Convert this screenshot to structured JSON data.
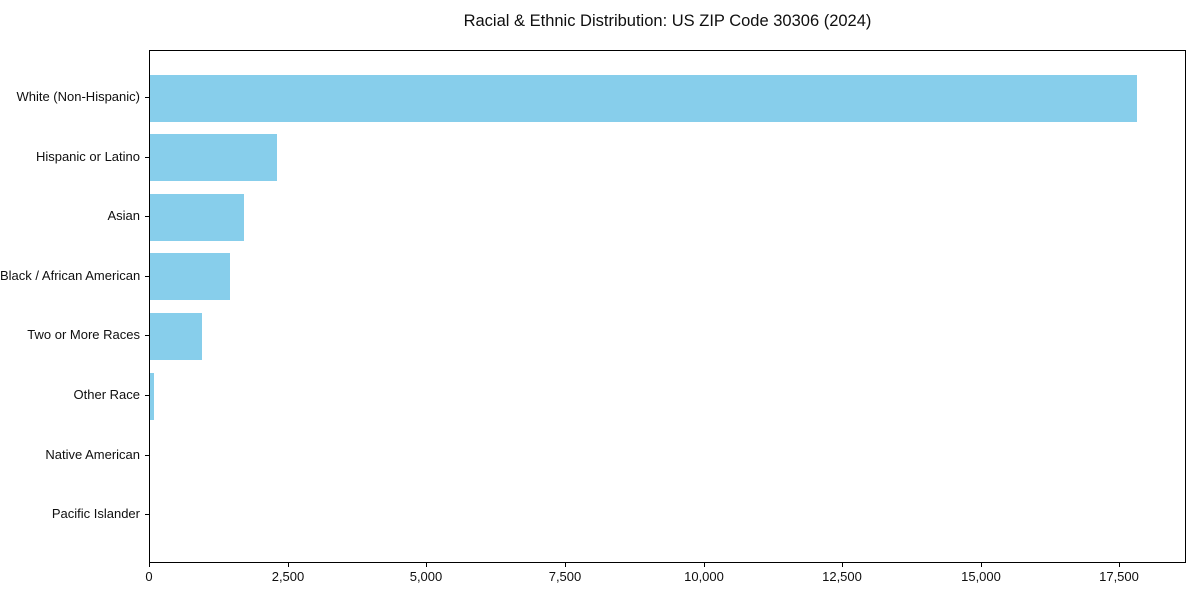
{
  "title": "Racial & Ethnic Distribution: US ZIP Code 30306 (2024)",
  "colors": {
    "bar": "#87CEEB",
    "spine": "#000000",
    "text": "#0f0f0f",
    "background": "#ffffff"
  },
  "chart_data": {
    "type": "bar",
    "orientation": "horizontal",
    "title": "Racial & Ethnic Distribution: US ZIP Code 30306 (2024)",
    "categories": [
      "White (Non-Hispanic)",
      "Hispanic or Latino",
      "Asian",
      "Black / African American",
      "Two or More Races",
      "Other Race",
      "Native American",
      "Pacific Islander"
    ],
    "values": [
      17800,
      2290,
      1700,
      1440,
      940,
      70,
      0,
      0
    ],
    "xlabel": "",
    "ylabel": "",
    "xlim": [
      0,
      18700
    ],
    "x_ticks": [
      0,
      2500,
      5000,
      7500,
      10000,
      12500,
      15000,
      17500
    ],
    "x_tick_labels": [
      "0",
      "2,500",
      "5,000",
      "7,500",
      "10,000",
      "12,500",
      "15,000",
      "17,500"
    ],
    "bar_color": "#87CEEB",
    "grid": false,
    "legend": false,
    "categories_order": "top-to-bottom"
  }
}
